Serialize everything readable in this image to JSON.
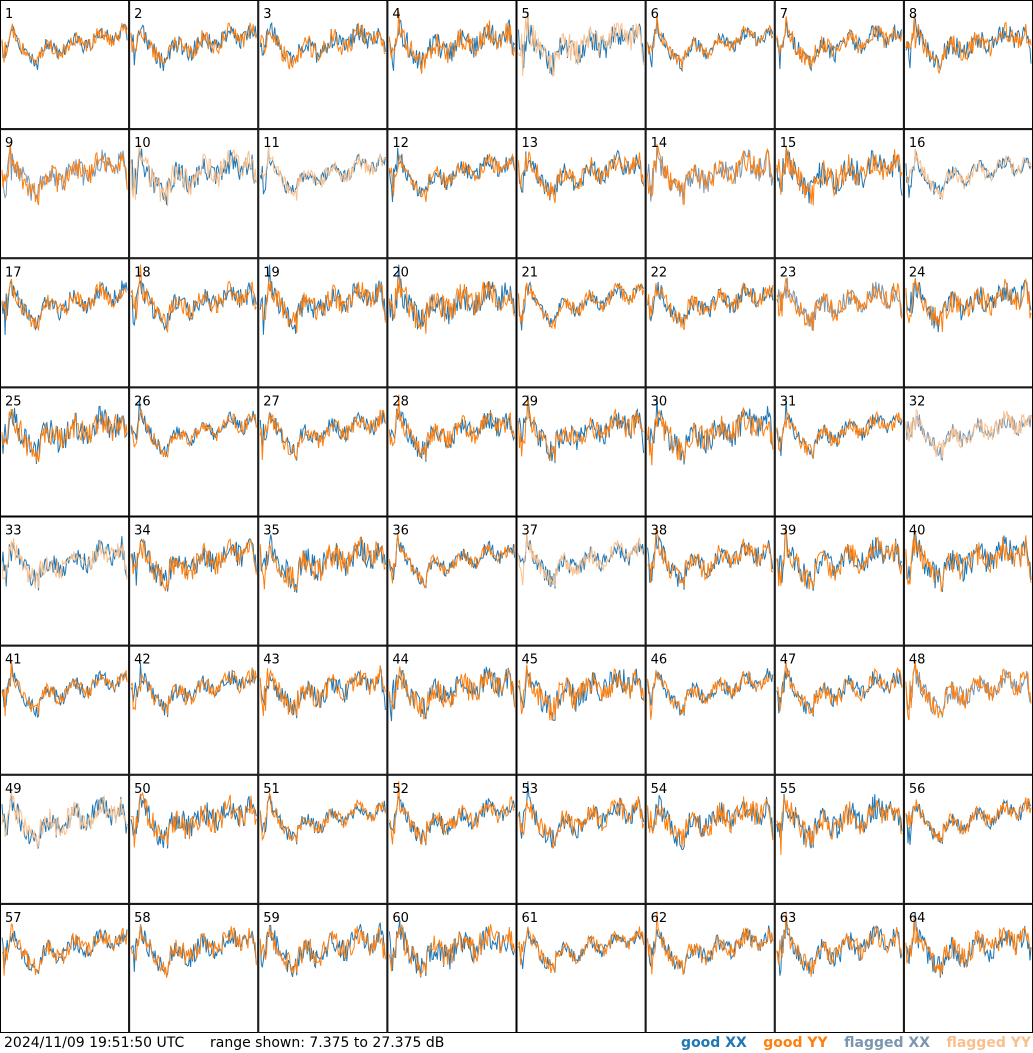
{
  "chart_data": {
    "type": "line",
    "layout": "grid of 64 small-multiple spectra, 8 columns x 8 rows",
    "panels": [
      "1",
      "2",
      "3",
      "4",
      "5",
      "6",
      "7",
      "8",
      "9",
      "10",
      "11",
      "12",
      "13",
      "14",
      "15",
      "16",
      "17",
      "18",
      "19",
      "20",
      "21",
      "22",
      "23",
      "24",
      "25",
      "26",
      "27",
      "28",
      "29",
      "30",
      "31",
      "32",
      "33",
      "34",
      "35",
      "36",
      "37",
      "38",
      "39",
      "40",
      "41",
      "42",
      "43",
      "44",
      "45",
      "46",
      "47",
      "48",
      "49",
      "50",
      "51",
      "52",
      "53",
      "54",
      "55",
      "56",
      "57",
      "58",
      "59",
      "60",
      "61",
      "62",
      "63",
      "64"
    ],
    "ylim": [
      7.375,
      27.375
    ],
    "yunit": "dB",
    "series_legend": [
      {
        "name": "good XX",
        "color": "#1f77b4"
      },
      {
        "name": "good YY",
        "color": "#ff7f0e"
      },
      {
        "name": "flagged XX",
        "color": "#7a96b0"
      },
      {
        "name": "flagged YY",
        "color": "#f9c08e"
      }
    ],
    "panel_series": {
      "1": {
        "XX": "good",
        "YY": "good"
      },
      "5": {
        "XX": "good",
        "YY": "flagged"
      },
      "9": {
        "XX": "flagged",
        "YY": "good"
      },
      "10": {
        "XX": "good",
        "YY": "flagged"
      },
      "11": {
        "XX": "good",
        "YY": "flagged"
      },
      "14": {
        "XX": "flagged",
        "YY": "good"
      },
      "16": {
        "XX": "good",
        "YY": "flagged"
      },
      "23": {
        "XX": "flagged",
        "YY": "good"
      },
      "32": {
        "XX": "flagged",
        "YY": "flagged"
      },
      "33": {
        "XX": "good",
        "YY": "flagged"
      },
      "37": {
        "XX": "good",
        "YY": "flagged"
      },
      "48": {
        "XX": "flagged",
        "YY": "good"
      },
      "49": {
        "XX": "good",
        "YY": "flagged"
      }
    }
  },
  "footer": {
    "timestamp": "2024/11/09 19:51:50 UTC",
    "range_text": "range shown: 7.375 to 27.375 dB",
    "legend": [
      "good XX",
      "good YY",
      "flagged XX",
      "flagged YY"
    ]
  }
}
